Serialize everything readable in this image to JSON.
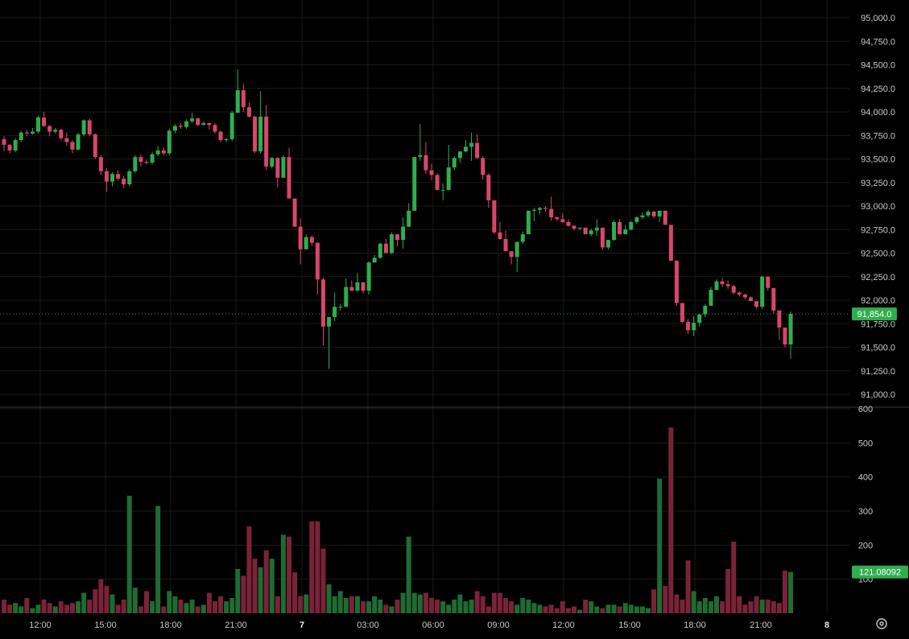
{
  "colors": {
    "background": "#000000",
    "grid": "#1a1a1a",
    "up": "#2fae4d",
    "down": "#d8466c",
    "vol_up": "#1f6b33",
    "vol_down": "#7a2338",
    "axis_text": "#c9c9c9",
    "separator": "#3a3a3a"
  },
  "price_axis": {
    "ticks": [
      "95,000.0",
      "94,750.0",
      "94,500.0",
      "94,250.0",
      "94,000.0",
      "93,750.0",
      "93,500.0",
      "93,250.0",
      "93,000.0",
      "92,750.0",
      "92,500.0",
      "92,250.0",
      "92,000.0",
      "91,750.0",
      "91,500.0",
      "91,250.0",
      "91,000.0"
    ]
  },
  "volume_axis": {
    "ticks": [
      "600",
      "500",
      "400",
      "300",
      "200",
      "100"
    ]
  },
  "time_axis": {
    "labels": [
      "12:00",
      "15:00",
      "18:00",
      "21:00",
      "7",
      "03:00",
      "06:00",
      "09:00",
      "12:00",
      "15:00",
      "18:00",
      "21:00",
      "8"
    ],
    "bold": [
      false,
      false,
      false,
      false,
      true,
      false,
      false,
      false,
      false,
      false,
      false,
      false,
      true
    ]
  },
  "last_price_label": "91,854.0",
  "last_volume_label": "121.08092",
  "settings_icon": "gear-icon",
  "chart_data": {
    "type": "candlestick",
    "interval_minutes": 15,
    "price_range": [
      91000,
      95000
    ],
    "volume_range": [
      0,
      600
    ],
    "last_price": 91854.0,
    "last_volume": 121.08092,
    "candles_ohlcv": [
      [
        93710,
        93740,
        93580,
        93650,
        40
      ],
      [
        93650,
        93660,
        93560,
        93590,
        25
      ],
      [
        93590,
        93720,
        93570,
        93700,
        30
      ],
      [
        93700,
        93800,
        93680,
        93780,
        20
      ],
      [
        93780,
        93800,
        93740,
        93770,
        45
      ],
      [
        93770,
        93830,
        93760,
        93790,
        15
      ],
      [
        93790,
        93960,
        93770,
        93940,
        25
      ],
      [
        93940,
        94000,
        93840,
        93850,
        40
      ],
      [
        93850,
        93860,
        93740,
        93790,
        30
      ],
      [
        93790,
        93830,
        93770,
        93810,
        20
      ],
      [
        93810,
        93820,
        93700,
        93720,
        35
      ],
      [
        93720,
        93780,
        93640,
        93680,
        25
      ],
      [
        93680,
        93700,
        93560,
        93600,
        30
      ],
      [
        93600,
        93780,
        93590,
        93760,
        35
      ],
      [
        93760,
        93920,
        93740,
        93910,
        60
      ],
      [
        93910,
        93930,
        93740,
        93760,
        40
      ],
      [
        93760,
        93770,
        93500,
        93520,
        70
      ],
      [
        93520,
        93540,
        93330,
        93370,
        100
      ],
      [
        93370,
        93400,
        93150,
        93260,
        80
      ],
      [
        93260,
        93360,
        93210,
        93340,
        55
      ],
      [
        93340,
        93380,
        93270,
        93290,
        25
      ],
      [
        93290,
        93320,
        93190,
        93230,
        40
      ],
      [
        93230,
        93390,
        93210,
        93370,
        345
      ],
      [
        93370,
        93540,
        93350,
        93520,
        75
      ],
      [
        93520,
        93550,
        93420,
        93470,
        20
      ],
      [
        93470,
        93490,
        93440,
        93460,
        65
      ],
      [
        93460,
        93570,
        93440,
        93550,
        35
      ],
      [
        93550,
        93640,
        93530,
        93590,
        315
      ],
      [
        93590,
        93620,
        93540,
        93560,
        20
      ],
      [
        93560,
        93820,
        93540,
        93800,
        65
      ],
      [
        93800,
        93870,
        93770,
        93850,
        50
      ],
      [
        93850,
        93880,
        93820,
        93840,
        40
      ],
      [
        93840,
        93920,
        93820,
        93900,
        30
      ],
      [
        93900,
        93990,
        93880,
        93930,
        40
      ],
      [
        93930,
        93940,
        93850,
        93860,
        20
      ],
      [
        93860,
        93900,
        93860,
        93880,
        25
      ],
      [
        93880,
        93890,
        93810,
        93860,
        60
      ],
      [
        93860,
        93880,
        93770,
        93790,
        35
      ],
      [
        93790,
        93800,
        93680,
        93700,
        50
      ],
      [
        93700,
        93720,
        93680,
        93710,
        35
      ],
      [
        93710,
        94010,
        93690,
        93990,
        45
      ],
      [
        93990,
        94450,
        93990,
        94230,
        130
      ],
      [
        94230,
        94300,
        94000,
        94050,
        110
      ],
      [
        94050,
        94100,
        93940,
        93950,
        255
      ],
      [
        93950,
        93960,
        93560,
        93580,
        160
      ],
      [
        93580,
        94220,
        93560,
        93950,
        135
      ],
      [
        93950,
        94070,
        93380,
        93420,
        185
      ],
      [
        93420,
        93520,
        93400,
        93510,
        160
      ],
      [
        93510,
        93520,
        93200,
        93300,
        50
      ],
      [
        93300,
        93540,
        93310,
        93520,
        230
      ],
      [
        93520,
        93620,
        93080,
        93080,
        225
      ],
      [
        93080,
        92950,
        92780,
        92780,
        120
      ],
      [
        92780,
        92870,
        92380,
        92540,
        50
      ],
      [
        92540,
        92700,
        92540,
        92670,
        55
      ],
      [
        92670,
        92690,
        92580,
        92610,
        270
      ],
      [
        92610,
        92560,
        92060,
        92220,
        270
      ],
      [
        92220,
        92240,
        91520,
        91720,
        190
      ],
      [
        91720,
        91780,
        91270,
        91820,
        85
      ],
      [
        91820,
        92080,
        91780,
        91930,
        50
      ],
      [
        91930,
        91960,
        91890,
        91930,
        65
      ],
      [
        91930,
        92230,
        91930,
        92140,
        45
      ],
      [
        92140,
        92210,
        92100,
        92100,
        50
      ],
      [
        92100,
        92290,
        92100,
        92190,
        50
      ],
      [
        92190,
        92160,
        92070,
        92100,
        35
      ],
      [
        92100,
        92410,
        92060,
        92400,
        35
      ],
      [
        92400,
        92480,
        92400,
        92450,
        50
      ],
      [
        92450,
        92610,
        92440,
        92600,
        40
      ],
      [
        92600,
        92650,
        92500,
        92500,
        25
      ],
      [
        92500,
        92720,
        92490,
        92700,
        20
      ],
      [
        92700,
        92680,
        92570,
        92640,
        40
      ],
      [
        92640,
        92880,
        92550,
        92780,
        60
      ],
      [
        92780,
        93030,
        92780,
        92950,
        225
      ],
      [
        92950,
        93320,
        92950,
        93520,
        60
      ],
      [
        93520,
        93870,
        93480,
        93540,
        55
      ],
      [
        93540,
        93680,
        93340,
        93380,
        60
      ],
      [
        93380,
        93450,
        93270,
        93330,
        45
      ],
      [
        93330,
        93350,
        93170,
        93170,
        40
      ],
      [
        93170,
        93240,
        93060,
        93170,
        35
      ],
      [
        93170,
        93650,
        93200,
        93410,
        25
      ],
      [
        93410,
        93530,
        93380,
        93510,
        40
      ],
      [
        93510,
        93540,
        93460,
        93580,
        55
      ],
      [
        93580,
        93700,
        93570,
        93630,
        35
      ],
      [
        93630,
        93780,
        93480,
        93670,
        40
      ],
      [
        93670,
        93760,
        93500,
        93510,
        65
      ],
      [
        93510,
        93530,
        93280,
        93330,
        50
      ],
      [
        93330,
        93350,
        92980,
        93060,
        20
      ],
      [
        93060,
        93020,
        92700,
        92720,
        60
      ],
      [
        92720,
        92830,
        92640,
        92650,
        60
      ],
      [
        92650,
        92740,
        92520,
        92520,
        45
      ],
      [
        92520,
        92520,
        92380,
        92460,
        35
      ],
      [
        92460,
        92450,
        92300,
        92620,
        25
      ],
      [
        92620,
        92730,
        92600,
        92700,
        45
      ],
      [
        92700,
        92790,
        92700,
        92950,
        40
      ],
      [
        92950,
        92980,
        92840,
        92960,
        30
      ],
      [
        92960,
        92990,
        92910,
        92980,
        25
      ],
      [
        92980,
        93000,
        92940,
        92970,
        20
      ],
      [
        92970,
        93100,
        92840,
        92880,
        25
      ],
      [
        92880,
        92890,
        92840,
        92860,
        15
      ],
      [
        92860,
        92920,
        92820,
        92830,
        35
      ],
      [
        92830,
        92860,
        92780,
        92790,
        15
      ],
      [
        92790,
        92800,
        92740,
        92760,
        20
      ],
      [
        92760,
        92760,
        92740,
        92770,
        10
      ],
      [
        92770,
        92760,
        92700,
        92700,
        40
      ],
      [
        92700,
        92760,
        92680,
        92740,
        35
      ],
      [
        92740,
        92860,
        92680,
        92770,
        20
      ],
      [
        92770,
        92760,
        92540,
        92560,
        15
      ],
      [
        92560,
        92640,
        92540,
        92640,
        25
      ],
      [
        92640,
        92850,
        92630,
        92830,
        25
      ],
      [
        92830,
        92860,
        92700,
        92700,
        20
      ],
      [
        92700,
        92800,
        92700,
        92750,
        30
      ],
      [
        92750,
        92840,
        92740,
        92830,
        25
      ],
      [
        92830,
        92890,
        92810,
        92880,
        20
      ],
      [
        92880,
        92930,
        92860,
        92900,
        20
      ],
      [
        92900,
        92960,
        92880,
        92940,
        15
      ],
      [
        92940,
        92950,
        92870,
        92890,
        70
      ],
      [
        92890,
        92950,
        92830,
        92950,
        395
      ],
      [
        92950,
        92900,
        92800,
        92800,
        80
      ],
      [
        92800,
        92790,
        92420,
        92420,
        545
      ],
      [
        92420,
        92160,
        91940,
        91970,
        55
      ],
      [
        91970,
        91930,
        91760,
        91770,
        40
      ],
      [
        91770,
        91800,
        91640,
        91680,
        155
      ],
      [
        91680,
        91830,
        91620,
        91760,
        65
      ],
      [
        91760,
        91850,
        91720,
        91850,
        35
      ],
      [
        91850,
        91960,
        91820,
        91940,
        45
      ],
      [
        91940,
        92140,
        91940,
        92110,
        35
      ],
      [
        92110,
        92220,
        92100,
        92200,
        50
      ],
      [
        92200,
        92240,
        92140,
        92170,
        35
      ],
      [
        92170,
        92210,
        92120,
        92150,
        130
      ],
      [
        92150,
        92160,
        92060,
        92080,
        210
      ],
      [
        92080,
        92090,
        92040,
        92060,
        50
      ],
      [
        92060,
        92070,
        92010,
        92030,
        25
      ],
      [
        92030,
        92040,
        91990,
        91990,
        35
      ],
      [
        91990,
        91960,
        91910,
        91930,
        50
      ],
      [
        91930,
        92260,
        91910,
        92250,
        40
      ],
      [
        92250,
        92230,
        92100,
        92130,
        40
      ],
      [
        92130,
        92010,
        91860,
        91890,
        35
      ],
      [
        91890,
        91720,
        91580,
        91710,
        30
      ],
      [
        91710,
        91570,
        91500,
        91530,
        125
      ],
      [
        91530,
        91880,
        91380,
        91854,
        121.08092
      ]
    ]
  }
}
